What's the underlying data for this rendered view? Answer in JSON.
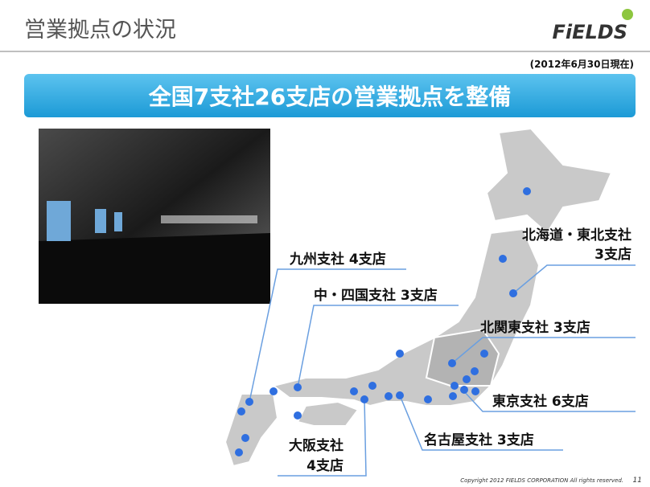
{
  "header": {
    "title": "営業拠点の状況",
    "logo": "FiELDS",
    "date": "(2012年6月30日現在)"
  },
  "banner": "全国7支社26支店の営業拠点を整備",
  "regions": [
    {
      "lines": [
        "九州支社 4支店"
      ]
    },
    {
      "lines": [
        "中・四国支社 3支店"
      ]
    },
    {
      "lines": [
        "北海道・東北支社",
        "3支店"
      ]
    },
    {
      "lines": [
        "北関東支社 3支店"
      ]
    },
    {
      "lines": [
        "東京支社 6支店"
      ]
    },
    {
      "lines": [
        "名古屋支社 3支店"
      ]
    },
    {
      "lines": [
        "大阪支社",
        "4支店"
      ]
    }
  ],
  "footer": {
    "copyright": "Copyright 2012 FIELDS CORPORATION All rights reserved.",
    "page": "11"
  }
}
